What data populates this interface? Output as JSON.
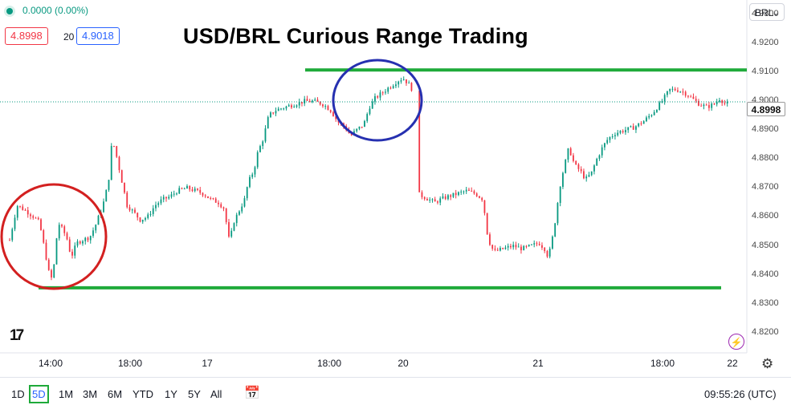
{
  "header": {
    "change_text": "0.0000 (0.00%)",
    "bid": "4.8998",
    "spread": "20",
    "ask": "4.9018",
    "symbol": "BRL"
  },
  "chart_data": {
    "type": "candlestick",
    "title": "USD/BRL Curious Range Trading",
    "last_price": "4.8998",
    "ylim": [
      4.813,
      4.935
    ],
    "y_ticks": [
      "4.9300",
      "4.9200",
      "4.9100",
      "4.9000",
      "4.8900",
      "4.8800",
      "4.8700",
      "4.8600",
      "4.8500",
      "4.8400",
      "4.8300",
      "4.8200"
    ],
    "x_ticks": [
      "14:00",
      "18:00",
      "17",
      "18:00",
      "20",
      "21",
      "18:00",
      "22"
    ],
    "close_path": [
      [
        0,
        4.852
      ],
      [
        8,
        4.864
      ],
      [
        18,
        4.862
      ],
      [
        26,
        4.86
      ],
      [
        32,
        4.858
      ],
      [
        38,
        4.848
      ],
      [
        42,
        4.841
      ],
      [
        46,
        4.838
      ],
      [
        52,
        4.858
      ],
      [
        58,
        4.855
      ],
      [
        62,
        4.852
      ],
      [
        66,
        4.846
      ],
      [
        72,
        4.851
      ],
      [
        78,
        4.852
      ],
      [
        86,
        4.853
      ],
      [
        92,
        4.857
      ],
      [
        100,
        4.864
      ],
      [
        106,
        4.872
      ],
      [
        110,
        4.887
      ],
      [
        114,
        4.882
      ],
      [
        120,
        4.873
      ],
      [
        126,
        4.864
      ],
      [
        132,
        4.862
      ],
      [
        140,
        4.859
      ],
      [
        148,
        4.86
      ],
      [
        156,
        4.864
      ],
      [
        164,
        4.866
      ],
      [
        172,
        4.867
      ],
      [
        180,
        4.869
      ],
      [
        190,
        4.87
      ],
      [
        200,
        4.869
      ],
      [
        208,
        4.868
      ],
      [
        216,
        4.866
      ],
      [
        224,
        4.865
      ],
      [
        230,
        4.863
      ],
      [
        236,
        4.851
      ],
      [
        240,
        4.858
      ],
      [
        246,
        4.862
      ],
      [
        252,
        4.866
      ],
      [
        256,
        4.872
      ],
      [
        262,
        4.876
      ],
      [
        266,
        4.882
      ],
      [
        272,
        4.887
      ],
      [
        278,
        4.895
      ],
      [
        286,
        4.897
      ],
      [
        296,
        4.898
      ],
      [
        306,
        4.899
      ],
      [
        316,
        4.9
      ],
      [
        326,
        4.9
      ],
      [
        336,
        4.899
      ],
      [
        344,
        4.897
      ],
      [
        352,
        4.893
      ],
      [
        360,
        4.891
      ],
      [
        366,
        4.888
      ],
      [
        372,
        4.89
      ],
      [
        380,
        4.892
      ],
      [
        386,
        4.898
      ],
      [
        392,
        4.901
      ],
      [
        400,
        4.903
      ],
      [
        408,
        4.905
      ],
      [
        416,
        4.907
      ],
      [
        422,
        4.908
      ],
      [
        428,
        4.906
      ],
      [
        432,
        4.904
      ],
      [
        436,
        4.902
      ],
      [
        438,
        4.868
      ],
      [
        444,
        4.867
      ],
      [
        450,
        4.866
      ],
      [
        456,
        4.865
      ],
      [
        462,
        4.866
      ],
      [
        470,
        4.867
      ],
      [
        480,
        4.868
      ],
      [
        490,
        4.869
      ],
      [
        500,
        4.868
      ],
      [
        508,
        4.866
      ],
      [
        512,
        4.855
      ],
      [
        516,
        4.85
      ],
      [
        520,
        4.848
      ],
      [
        530,
        4.849
      ],
      [
        540,
        4.85
      ],
      [
        550,
        4.849
      ],
      [
        560,
        4.85
      ],
      [
        568,
        4.851
      ],
      [
        574,
        4.849
      ],
      [
        578,
        4.846
      ],
      [
        582,
        4.852
      ],
      [
        586,
        4.86
      ],
      [
        590,
        4.87
      ],
      [
        594,
        4.876
      ],
      [
        600,
        4.884
      ],
      [
        606,
        4.878
      ],
      [
        612,
        4.876
      ],
      [
        618,
        4.873
      ],
      [
        624,
        4.875
      ],
      [
        630,
        4.88
      ],
      [
        636,
        4.884
      ],
      [
        642,
        4.887
      ],
      [
        650,
        4.889
      ],
      [
        660,
        4.89
      ],
      [
        670,
        4.891
      ],
      [
        680,
        4.893
      ],
      [
        690,
        4.896
      ],
      [
        700,
        4.9
      ],
      [
        708,
        4.904
      ],
      [
        716,
        4.904
      ],
      [
        724,
        4.903
      ],
      [
        732,
        4.901
      ],
      [
        740,
        4.899
      ],
      [
        748,
        4.898
      ],
      [
        756,
        4.899
      ],
      [
        762,
        4.901
      ],
      [
        768,
        4.899
      ],
      [
        772,
        4.899
      ]
    ],
    "annotations": {
      "resistance_level": 4.9108,
      "support_level": 4.8355,
      "last_price_line": 4.8998
    }
  },
  "toolbar": {
    "ranges": [
      "1D",
      "5D",
      "1M",
      "3M",
      "6M",
      "YTD",
      "1Y",
      "5Y",
      "All"
    ],
    "active_range": "5D",
    "clock": "09:55:26 (UTC)"
  },
  "colors": {
    "up": "#089981",
    "down": "#f23645",
    "line_green": "#1faa3a",
    "circle_red": "#d32020",
    "circle_blue": "#2630b0"
  }
}
